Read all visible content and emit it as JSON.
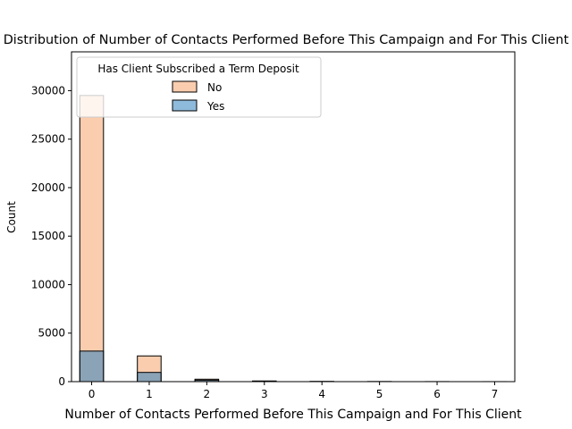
{
  "chart_data": {
    "type": "bar",
    "title": "Distribution of Number of Contacts Performed Before This Campaign and For This Client",
    "xlabel": "Number of Contacts Performed Before This Campaign and For This Client",
    "ylabel": "Count",
    "xlim": [
      -0.35,
      7.35
    ],
    "ylim": [
      0,
      34000
    ],
    "x_ticks": [
      "0",
      "1",
      "2",
      "3",
      "4",
      "5",
      "6",
      "7"
    ],
    "y_ticks": [
      "0",
      "5000",
      "10000",
      "15000",
      "20000",
      "25000",
      "30000"
    ],
    "legend_title": "Has Client Subscribed a Term Deposit",
    "legend_placement": "top-left",
    "bin_width": 0.4118,
    "series": [
      {
        "name": "No",
        "color": "#f4a46c",
        "bins": [
          {
            "x": 0,
            "value": 29500
          },
          {
            "x": 1,
            "value": 2650
          },
          {
            "x": 2,
            "value": 250
          },
          {
            "x": 3,
            "value": 70
          },
          {
            "x": 4,
            "value": 20
          },
          {
            "x": 5,
            "value": 10
          },
          {
            "x": 6,
            "value": 5
          },
          {
            "x": 7,
            "value": 2
          }
        ]
      },
      {
        "name": "Yes",
        "color": "#3182bd",
        "bins": [
          {
            "x": 0,
            "value": 3150
          },
          {
            "x": 1,
            "value": 950
          },
          {
            "x": 2,
            "value": 150
          },
          {
            "x": 3,
            "value": 40
          },
          {
            "x": 4,
            "value": 15
          },
          {
            "x": 5,
            "value": 8
          },
          {
            "x": 6,
            "value": 3
          },
          {
            "x": 7,
            "value": 1
          }
        ]
      }
    ]
  }
}
